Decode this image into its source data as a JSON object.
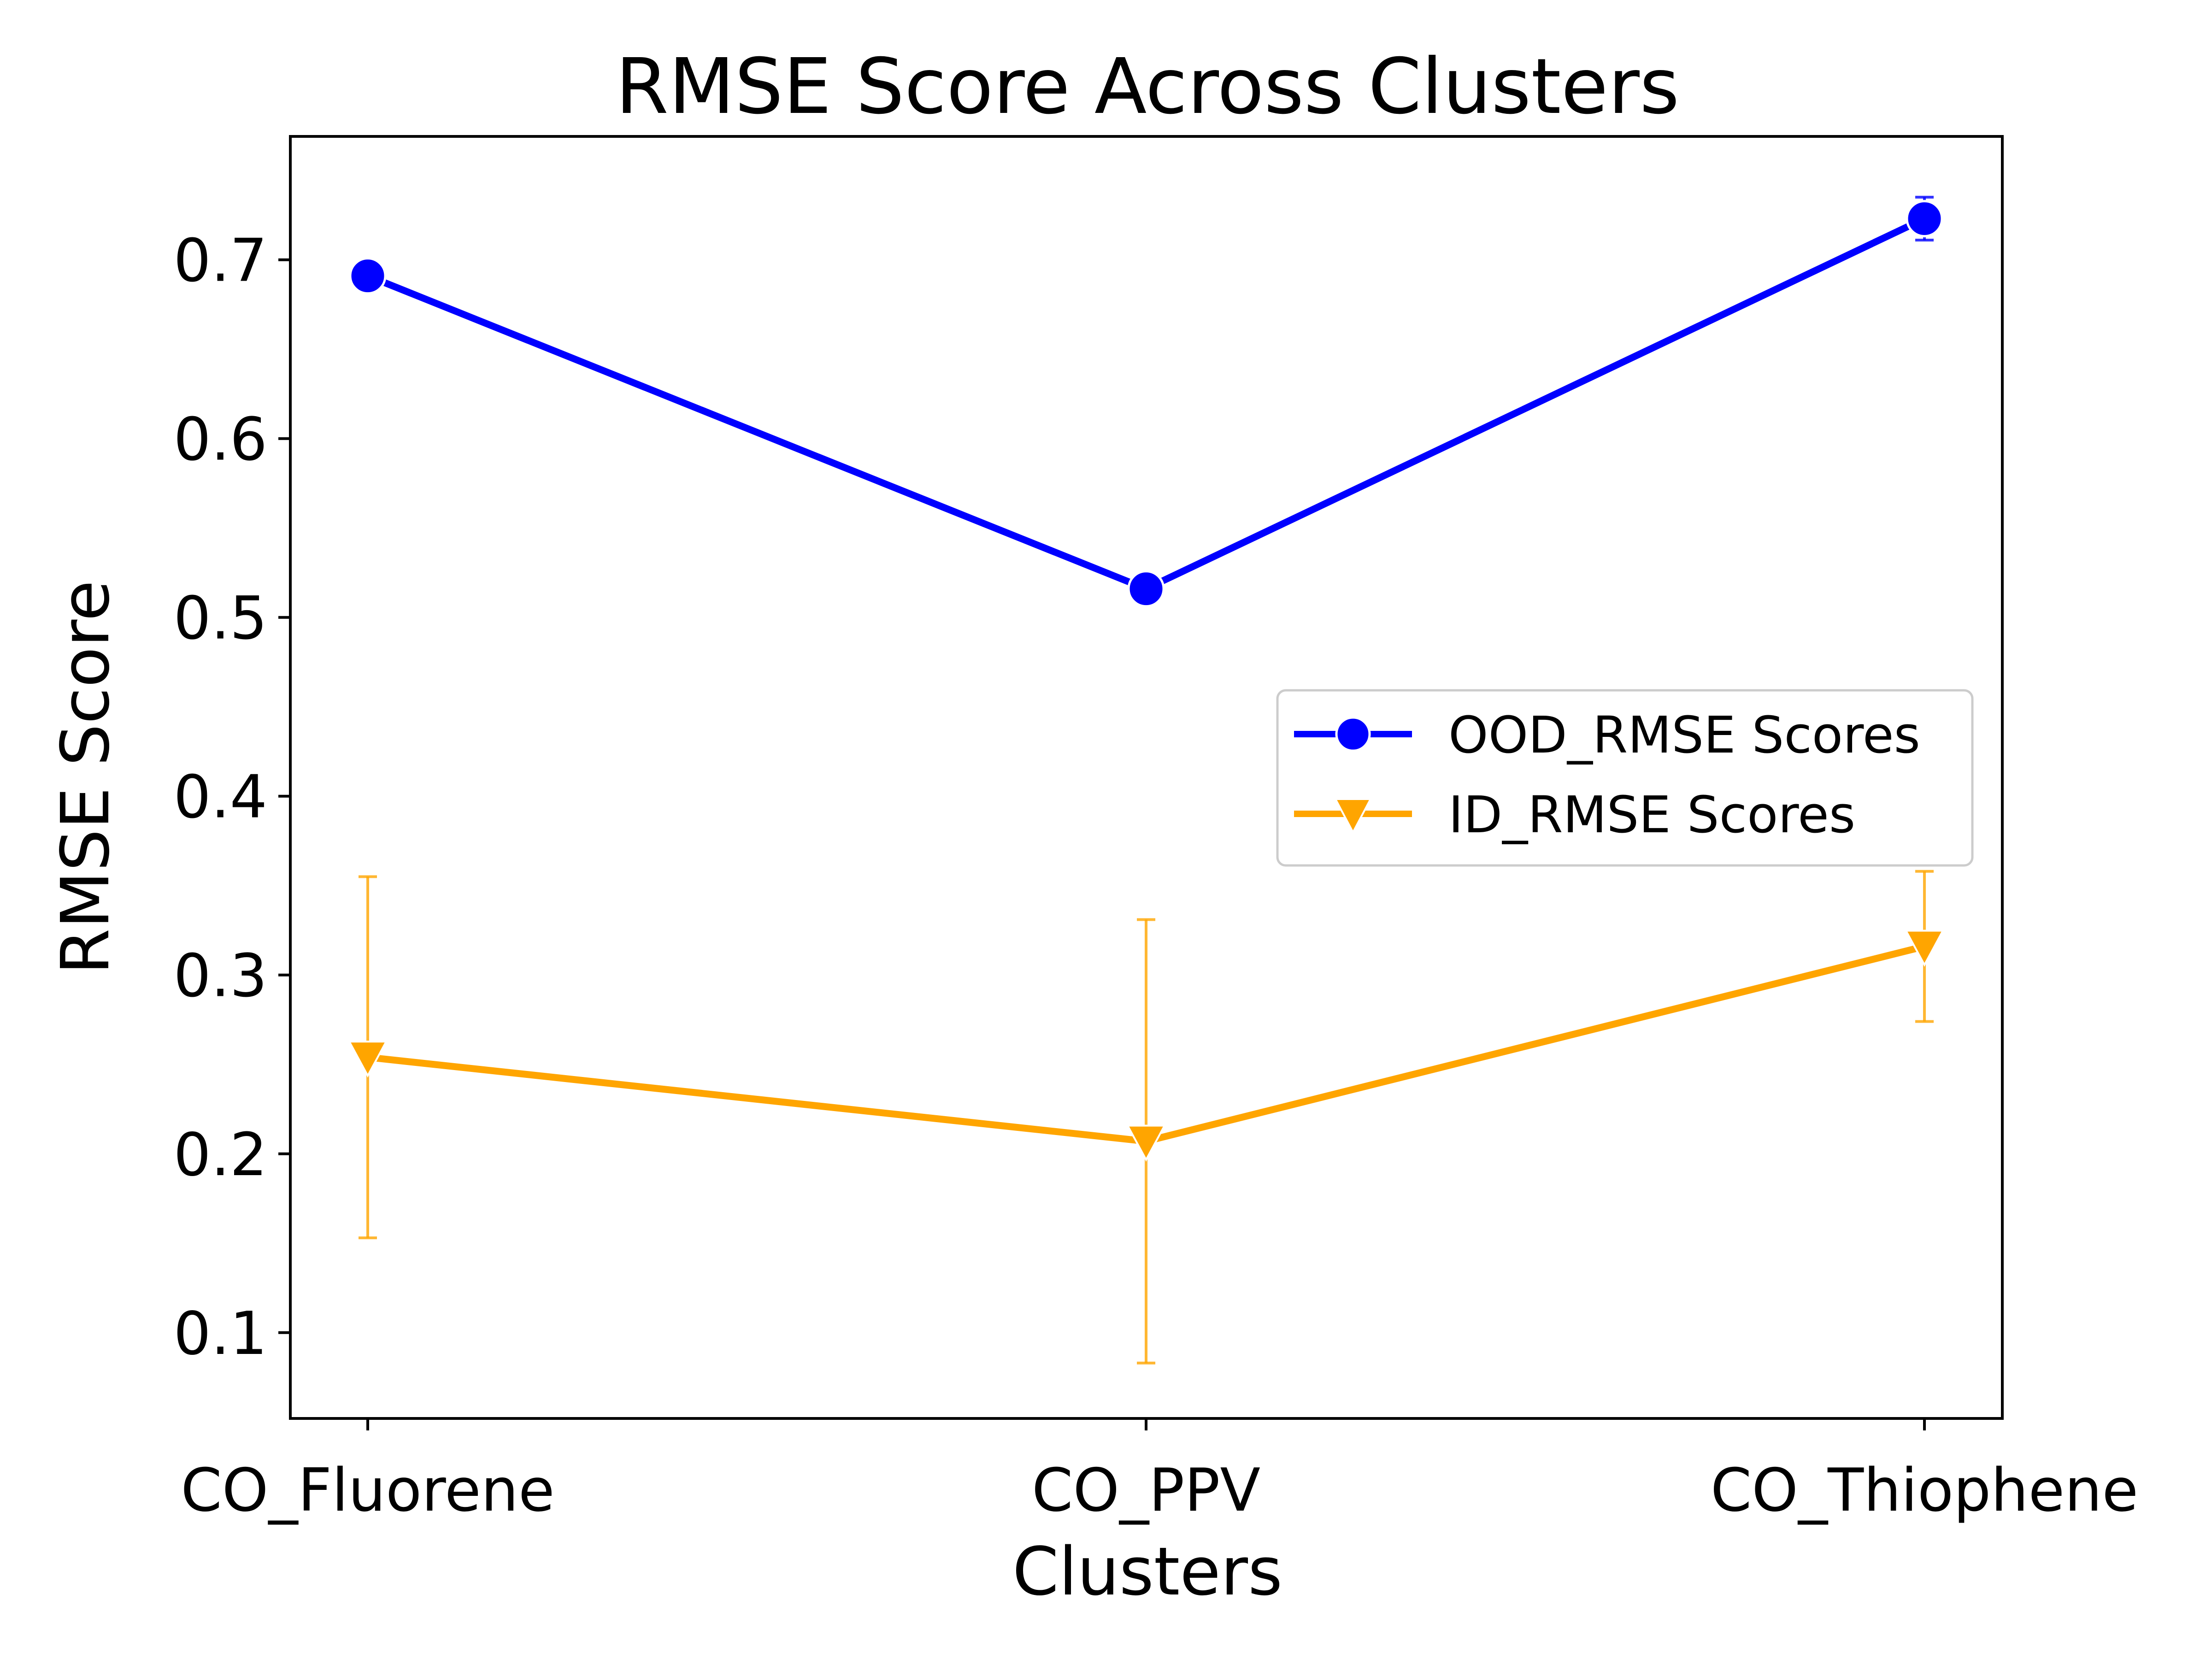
{
  "chart_data": {
    "type": "line",
    "title": "RMSE Score Across Clusters",
    "xlabel": "Clusters",
    "ylabel": "RMSE Score",
    "categories": [
      "CO_Fluorene",
      "CO_PPV",
      "CO_Thiophene"
    ],
    "ylim": [
      0.052,
      0.769
    ],
    "yticks": [
      "0.1",
      "0.2",
      "0.3",
      "0.4",
      "0.5",
      "0.6",
      "0.7"
    ],
    "grid": false,
    "legend_position": "center-right",
    "series": [
      {
        "name": "OOD_RMSE Scores",
        "values": [
          0.691,
          0.516,
          0.723
        ],
        "error": [
          0.002,
          0.003,
          0.012
        ],
        "color": "#0000ff",
        "marker": "circle"
      },
      {
        "name": "ID_RMSE Scores",
        "values": [
          0.254,
          0.207,
          0.316
        ],
        "error": [
          0.101,
          0.124,
          0.042
        ],
        "color": "#ffa500",
        "marker": "triangle-down"
      }
    ]
  }
}
